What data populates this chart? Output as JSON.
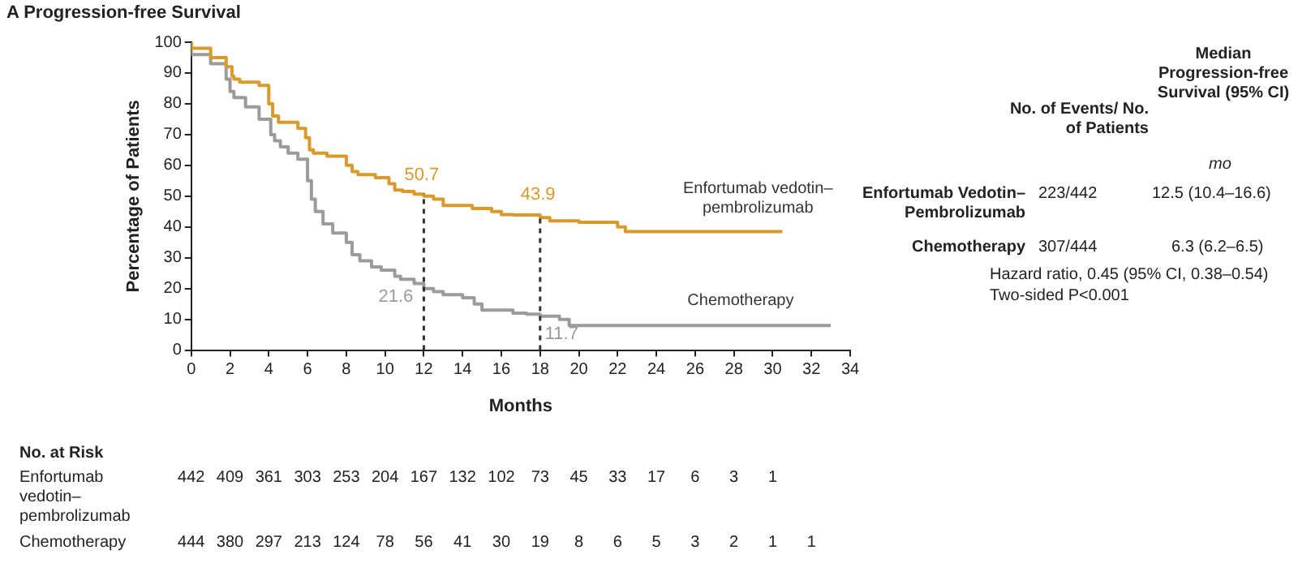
{
  "chart_data": {
    "type": "step",
    "title": "A  Progression-free Survival",
    "xlabel": "Months",
    "ylabel": "Percentage of Patients",
    "xlim": [
      0,
      34
    ],
    "xticks": [
      0,
      2,
      4,
      6,
      8,
      10,
      12,
      14,
      16,
      18,
      20,
      22,
      24,
      26,
      28,
      30,
      32,
      34
    ],
    "ylim": [
      0,
      100
    ],
    "yticks": [
      0,
      10,
      20,
      30,
      40,
      50,
      60,
      70,
      80,
      90,
      100
    ],
    "grid": false,
    "legend": false,
    "marker": "none",
    "series": [
      {
        "name": "Enfortumab vedotin–pembrolizumab",
        "color": "#d99a2b",
        "x": [
          0,
          1,
          1.8,
          2.1,
          2.2,
          2.5,
          3.5,
          4.0,
          4.2,
          4.5,
          5.5,
          5.9,
          6.1,
          6.3,
          7,
          8,
          8.3,
          8.6,
          9.5,
          10.2,
          10.5,
          10.9,
          11.5,
          12,
          12.5,
          13,
          14.5,
          15.5,
          16,
          16.6,
          18,
          18.5,
          20,
          22,
          22.4,
          22.6,
          30.5
        ],
        "values": [
          100,
          98,
          95,
          92,
          89,
          88,
          87,
          86,
          80,
          76,
          74,
          72,
          69,
          65,
          64,
          63,
          60,
          58,
          57,
          56,
          54,
          52,
          51.5,
          50.7,
          50,
          49,
          47,
          46,
          45,
          44,
          43.9,
          43,
          42,
          41.5,
          40,
          38.5,
          38.5
        ]
      },
      {
        "name": "Chemotherapy",
        "color": "#9b9b9b",
        "x": [
          0,
          1,
          1.8,
          2,
          2.2,
          2.8,
          3.5,
          4.1,
          4.3,
          4.6,
          5,
          5.5,
          6.0,
          6.2,
          6.4,
          6.8,
          7.3,
          8,
          8.3,
          8.7,
          9.3,
          9.8,
          10.5,
          10.8,
          11.5,
          12,
          12.5,
          13,
          14,
          14.6,
          15,
          16.6,
          17.3,
          18,
          19,
          19.5,
          24.2,
          33
        ],
        "values": [
          100,
          96,
          93,
          88,
          84,
          82,
          79,
          75,
          70,
          68,
          66,
          64,
          62,
          55,
          49,
          45,
          41,
          38,
          35,
          31,
          29,
          27,
          26,
          24,
          23,
          21.6,
          20,
          19,
          18,
          17,
          15,
          13,
          12,
          11.7,
          11,
          10,
          8,
          8
        ]
      }
    ],
    "ref_lines": [
      {
        "axis": "x",
        "value": 12,
        "line_style": "dashed",
        "color": "#333333"
      },
      {
        "axis": "x",
        "value": 18,
        "line_style": "dashed",
        "color": "#333333"
      }
    ],
    "annotations": [
      "50.7",
      "43.9",
      "21.6",
      "11.7",
      "No. of Events/ No. of Patients",
      "Median Progression-free Survival (95% CI)",
      "mo",
      "Enfortumab Vedotin–Pembrolizumab",
      "223/442",
      "12.5 (10.4–16.6)",
      "Chemotherapy",
      "307/444",
      "6.3 (6.2–6.5)",
      "Hazard ratio, 0.45 (95% CI, 0.38–0.54)",
      "Two-sided P<0.001",
      "No. at Risk",
      "Enfortumab vedotin–pembrolizumab",
      "442 409 361 303 253 204 167 132 102 73 45 33 17 6 3 1",
      "Chemotherapy",
      "444 380 297 213 124 78 56 41 30 19 8 6 5 3 2 1 1"
    ]
  }
}
